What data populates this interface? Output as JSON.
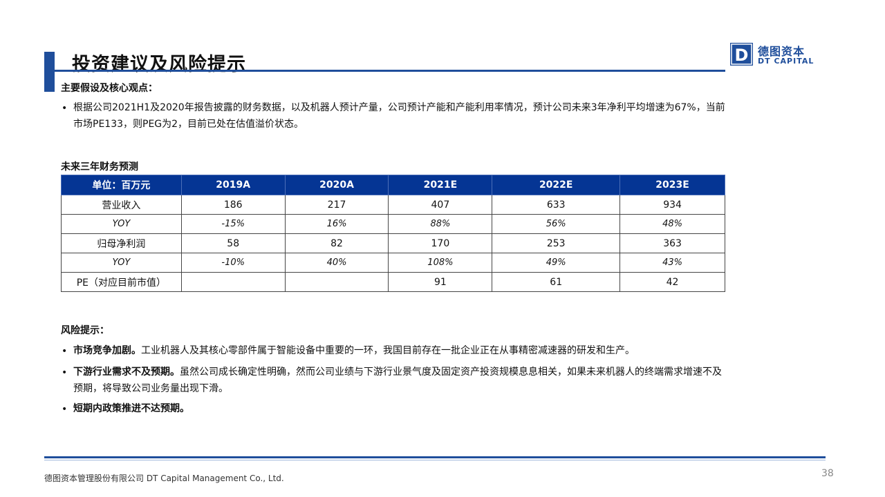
{
  "header": {
    "title": "投资建议及风险提示",
    "logo_cn": "德图资本",
    "logo_en": "DT CAPITAL",
    "logo_letter": "D"
  },
  "assumptions": {
    "heading": "主要假设及核心观点：",
    "bullet": "•",
    "text": "根据公司2021H1及2020年报告披露的财务数据，以及机器人预计产量，公司预计产能和产能利用率情况，预计公司未来3年净利平均增速为67%，当前市场PE133，则PEG为2，目前已处在估值溢价状态。"
  },
  "table": {
    "caption": "未来三年财务预测",
    "headers": [
      "单位：百万元",
      "2019A",
      "2020A",
      "2021E",
      "2022E",
      "2023E"
    ],
    "rows": [
      [
        "营业收入",
        "186",
        "217",
        "407",
        "633",
        "934"
      ],
      [
        "YOY",
        "-15%",
        "16%",
        "88%",
        "56%",
        "48%"
      ],
      [
        "归母净利润",
        "58",
        "82",
        "170",
        "253",
        "363"
      ],
      [
        "YOY",
        "-10%",
        "40%",
        "108%",
        "49%",
        "43%"
      ],
      [
        "PE（对应目前市值）",
        "",
        "",
        "91",
        "61",
        "42"
      ]
    ]
  },
  "risks": {
    "heading": "风险提示：",
    "items": [
      {
        "bullet": "•",
        "bold": "市场竞争加剧。",
        "text": "工业机器人及其核心零部件属于智能设备中重要的一环，我国目前存在一批企业正在从事精密减速器的研发和生产。"
      },
      {
        "bullet": "•",
        "bold": "下游行业需求不及预期。",
        "text": "虽然公司成长确定性明确，然而公司业绩与下游行业景气度及固定资产投资规模息息相关，如果未来机器人的终端需求增速不及预期，将导致公司业务量出现下滑。"
      },
      {
        "bullet": "•",
        "bold": "短期内政策推进不达预期。",
        "text": ""
      }
    ]
  },
  "footer": {
    "company": "德图资本管理股份有限公司  DT Capital Management  Co., Ltd.",
    "page": "38"
  },
  "colors": {
    "accent": "#1f4e9b",
    "table_header": "#053594"
  }
}
